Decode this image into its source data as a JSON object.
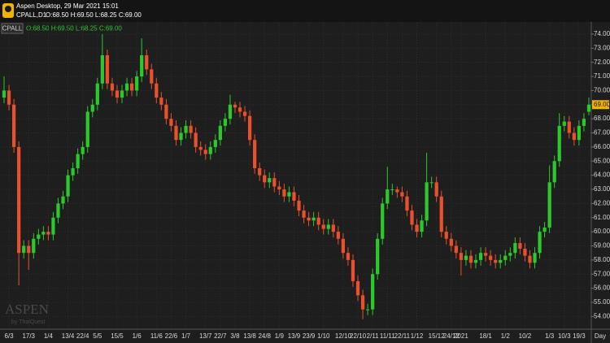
{
  "header": {
    "title": "Aspen Desktop, 29 Mar 2021 15:01",
    "symbol_line": "CPALL,D1"
  },
  "watermark": {
    "brand": "ASPEN",
    "by": "by ThaiQuest"
  },
  "chart_data": {
    "type": "candlestick",
    "symbol": "CPALL",
    "ohlc_text": "O:68.50 H:69.50 L:68.25 C:69.00",
    "last_label": "69.00",
    "xlabel": "Day",
    "grid": true,
    "up_color": "#2cc92c",
    "down_color": "#e8502e",
    "categories": [
      null,
      "6/3",
      null,
      null,
      null,
      "17/3",
      null,
      null,
      null,
      "1/4",
      null,
      null,
      null,
      "13/4",
      null,
      null,
      "22/4",
      null,
      null,
      "5/5",
      null,
      null,
      null,
      "15/5",
      null,
      null,
      null,
      "1/6",
      null,
      null,
      null,
      "11/6",
      null,
      null,
      "22/6",
      null,
      null,
      "1/7",
      null,
      null,
      null,
      "13/7",
      null,
      null,
      "22/7",
      null,
      null,
      "3/8",
      null,
      null,
      "13/8",
      null,
      null,
      "24/8",
      null,
      null,
      "1/9",
      null,
      null,
      "13/9",
      null,
      null,
      "23/9",
      null,
      null,
      "1/10",
      null,
      null,
      null,
      "12/10",
      null,
      null,
      "22/10",
      null,
      null,
      "2/11",
      null,
      null,
      "11/11",
      null,
      null,
      "22/11",
      null,
      null,
      "1/12",
      null,
      null,
      null,
      "15/12",
      null,
      null,
      "24/12",
      null,
      "2021",
      null,
      null,
      null,
      null,
      "18/1",
      null,
      null,
      null,
      "1/2",
      null,
      null,
      null,
      "10/2",
      null,
      null,
      null,
      null,
      "1/3",
      null,
      null,
      "10/3",
      null,
      null,
      "19/3",
      null,
      null
    ],
    "open": [
      69.5,
      70,
      69,
      66,
      58.5,
      59,
      58.5,
      59.5,
      59.8,
      60,
      59.8,
      61,
      62,
      62.5,
      64,
      64.5,
      65.5,
      66,
      68.5,
      69,
      70.5,
      72.5,
      70.5,
      70,
      69.5,
      70,
      70.5,
      70,
      71,
      72.5,
      71.5,
      70.5,
      69.5,
      69,
      68,
      67.5,
      66.5,
      67,
      67.5,
      67,
      66,
      65.8,
      65.5,
      66,
      66.5,
      67.5,
      68,
      69,
      68.8,
      68.5,
      68.2,
      66.5,
      64.5,
      64,
      63.5,
      63.8,
      63.2,
      63,
      62.5,
      62.8,
      62.2,
      61.5,
      61,
      60.8,
      61,
      60.5,
      60.2,
      60.5,
      60,
      59.5,
      58.5,
      58,
      56.5,
      55.5,
      54.5,
      54.5,
      57,
      59.5,
      62,
      63,
      63,
      62.8,
      62.5,
      61.5,
      60.5,
      60,
      60.8,
      63.5,
      63.5,
      62.5,
      60,
      59.5,
      59,
      58.5,
      58,
      58.3,
      57.8,
      58,
      58.5,
      58.3,
      58,
      57.8,
      58,
      58.3,
      58.5,
      59.2,
      58.8,
      58.3,
      57.8,
      58.5,
      60,
      60.3,
      63.5,
      65,
      67.5,
      67.8,
      67,
      66.5,
      67.5,
      68.5
    ],
    "high": [
      71,
      70.4,
      69.4,
      66.4,
      59.4,
      59.4,
      59.9,
      60.2,
      60.4,
      60.4,
      61.4,
      62.4,
      62.9,
      64.4,
      64.9,
      65.9,
      66.4,
      68.9,
      69.4,
      70.9,
      74,
      72.9,
      70.9,
      70.4,
      70.4,
      70.9,
      70.9,
      71.4,
      73.7,
      72.9,
      71.9,
      70.9,
      69.9,
      69.4,
      68.4,
      67.9,
      67.4,
      67.9,
      67.9,
      67.4,
      66.4,
      66.2,
      66.4,
      66.9,
      67.9,
      68.4,
      69.7,
      69.2,
      69.2,
      68.9,
      68.6,
      66.9,
      64.9,
      64.4,
      64.2,
      64.2,
      63.6,
      63.4,
      63.2,
      63.2,
      62.6,
      61.9,
      61.4,
      61.4,
      61.4,
      60.9,
      60.9,
      60.9,
      60.4,
      59.9,
      58.9,
      58.4,
      56.9,
      55.9,
      54.9,
      57.4,
      59.9,
      62.4,
      64.6,
      63.4,
      63.2,
      63.2,
      62.9,
      61.9,
      60.9,
      61.2,
      65.6,
      63.9,
      63.9,
      62.9,
      60.4,
      59.9,
      59.4,
      58.9,
      58.7,
      58.7,
      58.4,
      58.9,
      58.9,
      58.7,
      58.4,
      58.4,
      58.7,
      58.9,
      59.6,
      59.6,
      59.2,
      58.7,
      58.9,
      60.4,
      60.7,
      64.7,
      65.4,
      68.4,
      68.2,
      68.2,
      67.4,
      67.9,
      68.4,
      69.5
    ],
    "low": [
      69.1,
      68.6,
      65.6,
      56.2,
      58.1,
      57.3,
      58.1,
      59.1,
      59.4,
      59.4,
      59.4,
      60.6,
      61.6,
      62.1,
      63.6,
      64.1,
      65.1,
      65.6,
      68.1,
      68.6,
      70.1,
      70.1,
      69.6,
      69.1,
      69.1,
      69.6,
      69.6,
      69.6,
      70.6,
      71.1,
      70.1,
      69.1,
      68.6,
      67.6,
      67.1,
      66.1,
      66.1,
      66.6,
      66.6,
      65.6,
      65.4,
      65.1,
      65.1,
      65.6,
      66.1,
      67.1,
      67.6,
      68.4,
      68.1,
      67.8,
      66.1,
      64.1,
      63.6,
      63.1,
      63.1,
      62.8,
      62.6,
      62.1,
      62.1,
      61.8,
      61.1,
      60.6,
      60.4,
      60.4,
      60.1,
      59.8,
      59.8,
      59.6,
      59.1,
      58.1,
      57.6,
      56.1,
      55.1,
      53.8,
      54.1,
      54.1,
      56.6,
      59.1,
      61.6,
      62.6,
      62.4,
      62.1,
      61.1,
      60.1,
      59.6,
      59.6,
      60.4,
      63.1,
      62.1,
      59.6,
      59.1,
      58.6,
      58.1,
      56.9,
      57.6,
      57.4,
      57.4,
      57.6,
      57.9,
      57.6,
      57.4,
      57.4,
      57.6,
      57.9,
      58.1,
      58.4,
      57.9,
      57.4,
      57.4,
      58.1,
      59.6,
      59.9,
      63.1,
      64.6,
      67.1,
      66.6,
      66.1,
      66.1,
      67.1,
      68.25
    ],
    "close": [
      70,
      69,
      66,
      58.5,
      59,
      58.5,
      59.5,
      59.8,
      60,
      59.8,
      61,
      62,
      62.5,
      64,
      64.5,
      65.5,
      66,
      68.5,
      69,
      70.5,
      72.5,
      70.5,
      70,
      69.5,
      70,
      70.5,
      70,
      71,
      72.5,
      71.5,
      70.5,
      69.5,
      69,
      68,
      67.5,
      66.5,
      67,
      67.5,
      67,
      66,
      65.8,
      65.5,
      66,
      66.5,
      67.5,
      68,
      69,
      68.8,
      68.5,
      68.2,
      66.5,
      64.5,
      64,
      63.5,
      63.8,
      63.2,
      63,
      62.5,
      62.8,
      62.2,
      61.5,
      61,
      60.8,
      61,
      60.5,
      60.2,
      60.5,
      60,
      59.5,
      58.5,
      58,
      56.5,
      55.5,
      54.5,
      54.5,
      57,
      59.5,
      62,
      63,
      63,
      62.8,
      62.5,
      61.5,
      60.5,
      60,
      60.8,
      63.5,
      63.5,
      62.5,
      60,
      59.5,
      59,
      58.5,
      58,
      58.3,
      57.8,
      58,
      58.5,
      58.3,
      58,
      57.8,
      58,
      58.3,
      58.5,
      59.2,
      58.8,
      58.3,
      57.8,
      58.5,
      60,
      60.3,
      63.5,
      65,
      67.5,
      67.8,
      67,
      66.5,
      67.5,
      68,
      69
    ],
    "ylim": [
      53.1,
      74.8
    ],
    "yticks": [
      {
        "value": 54,
        "label": "54.00"
      },
      {
        "value": 55,
        "label": "55.00"
      },
      {
        "value": 56,
        "label": "56.00"
      },
      {
        "value": 57,
        "label": "57.00"
      },
      {
        "value": 58,
        "label": "58.00"
      },
      {
        "value": 59,
        "label": "59.00"
      },
      {
        "value": 60,
        "label": "60.00"
      },
      {
        "value": 61,
        "label": "61.00"
      },
      {
        "value": 62,
        "label": "62.00"
      },
      {
        "value": 63,
        "label": "63.00"
      },
      {
        "value": 64,
        "label": "64.00"
      },
      {
        "value": 65,
        "label": "65.00"
      },
      {
        "value": 66,
        "label": "66.00"
      },
      {
        "value": 67,
        "label": "67.00"
      },
      {
        "value": 68,
        "label": "68.00"
      },
      {
        "value": 69,
        "label": "69.00"
      },
      {
        "value": 70,
        "label": "70.00"
      },
      {
        "value": 71,
        "label": "71.00"
      },
      {
        "value": 72,
        "label": "72.00"
      },
      {
        "value": 73,
        "label": "73.00"
      },
      {
        "value": 74,
        "label": "74.00"
      }
    ]
  }
}
